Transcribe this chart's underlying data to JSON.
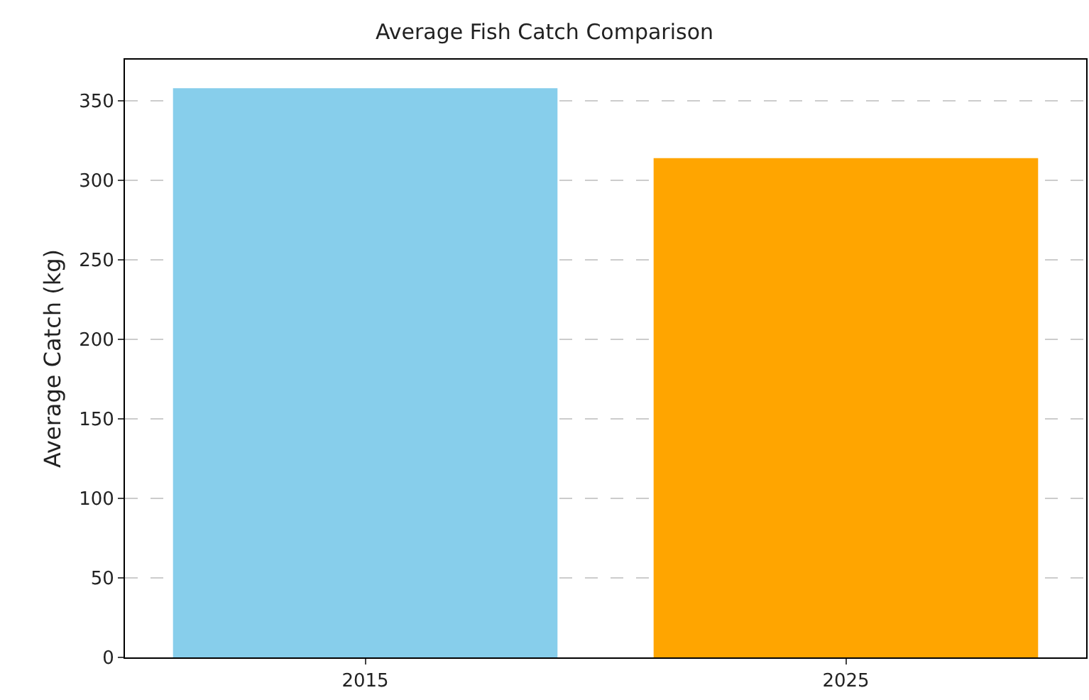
{
  "chart_data": {
    "type": "bar",
    "title": "Average Fish Catch Comparison",
    "ylabel": "Average Catch (kg)",
    "categories": [
      "2015",
      "2025"
    ],
    "values": [
      358,
      314
    ],
    "colors": [
      "#87ceeb",
      "#ffa500"
    ],
    "ylim": [
      0,
      376
    ],
    "yticks": [
      0,
      50,
      100,
      150,
      200,
      250,
      300,
      350
    ],
    "grid": "y"
  }
}
